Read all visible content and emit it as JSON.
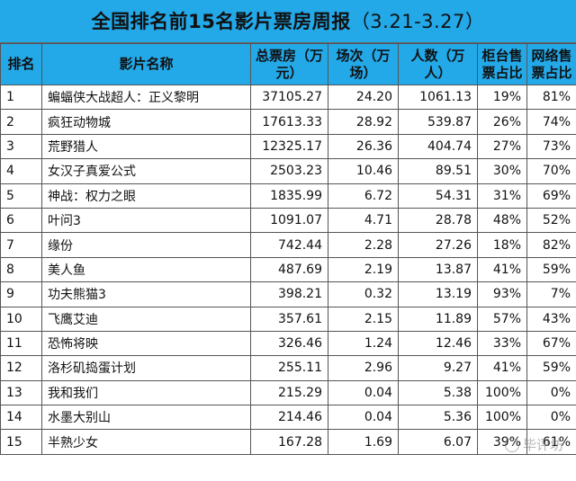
{
  "title": "全国排名前15名影片票房周报",
  "date_range": "（3.21-3.27）",
  "columns": {
    "rank": "排名",
    "name": "影片名称",
    "box_office": "总票房（万元）",
    "screenings": "场次（万场）",
    "audience": "人数（万人）",
    "counter_share": "柜台售票占比",
    "online_share": "网络售票占比"
  },
  "rows": [
    {
      "rank": "1",
      "name": "蝙蝠侠大战超人：正义黎明",
      "box_office": "37105.27",
      "screenings": "24.20",
      "audience": "1061.13",
      "counter_share": "19%",
      "online_share": "81%"
    },
    {
      "rank": "2",
      "name": "疯狂动物城",
      "box_office": "17613.33",
      "screenings": "28.92",
      "audience": "539.87",
      "counter_share": "26%",
      "online_share": "74%"
    },
    {
      "rank": "3",
      "name": "荒野猎人",
      "box_office": "12325.17",
      "screenings": "26.36",
      "audience": "404.74",
      "counter_share": "27%",
      "online_share": "73%"
    },
    {
      "rank": "4",
      "name": "女汉子真爱公式",
      "box_office": "2503.23",
      "screenings": "10.46",
      "audience": "89.51",
      "counter_share": "30%",
      "online_share": "70%"
    },
    {
      "rank": "5",
      "name": "神战：权力之眼",
      "box_office": "1835.99",
      "screenings": "6.72",
      "audience": "54.31",
      "counter_share": "31%",
      "online_share": "69%"
    },
    {
      "rank": "6",
      "name": "叶问3",
      "box_office": "1091.07",
      "screenings": "4.71",
      "audience": "28.78",
      "counter_share": "48%",
      "online_share": "52%"
    },
    {
      "rank": "7",
      "name": "缘份",
      "box_office": "742.44",
      "screenings": "2.28",
      "audience": "27.26",
      "counter_share": "18%",
      "online_share": "82%"
    },
    {
      "rank": "8",
      "name": "美人鱼",
      "box_office": "487.69",
      "screenings": "2.19",
      "audience": "13.87",
      "counter_share": "41%",
      "online_share": "59%"
    },
    {
      "rank": "9",
      "name": "功夫熊猫3",
      "box_office": "398.21",
      "screenings": "0.32",
      "audience": "13.19",
      "counter_share": "93%",
      "online_share": "7%"
    },
    {
      "rank": "10",
      "name": "飞鹰艾迪",
      "box_office": "357.61",
      "screenings": "2.15",
      "audience": "11.89",
      "counter_share": "57%",
      "online_share": "43%"
    },
    {
      "rank": "11",
      "name": "恐怖将映",
      "box_office": "326.46",
      "screenings": "1.24",
      "audience": "12.46",
      "counter_share": "33%",
      "online_share": "67%"
    },
    {
      "rank": "12",
      "name": "洛杉矶捣蛋计划",
      "box_office": "255.11",
      "screenings": "2.96",
      "audience": "9.27",
      "counter_share": "41%",
      "online_share": "59%"
    },
    {
      "rank": "13",
      "name": "我和我们",
      "box_office": "215.29",
      "screenings": "0.04",
      "audience": "5.38",
      "counter_share": "100%",
      "online_share": "0%"
    },
    {
      "rank": "14",
      "name": "水墨大别山",
      "box_office": "214.46",
      "screenings": "0.04",
      "audience": "5.36",
      "counter_share": "100%",
      "online_share": "0%"
    },
    {
      "rank": "15",
      "name": "半熟少女",
      "box_office": "167.28",
      "screenings": "1.69",
      "audience": "6.07",
      "counter_share": "39%",
      "online_share": "61%"
    }
  ],
  "watermark": "毕评坊",
  "colors": {
    "header_bg": "#23a8e8"
  }
}
